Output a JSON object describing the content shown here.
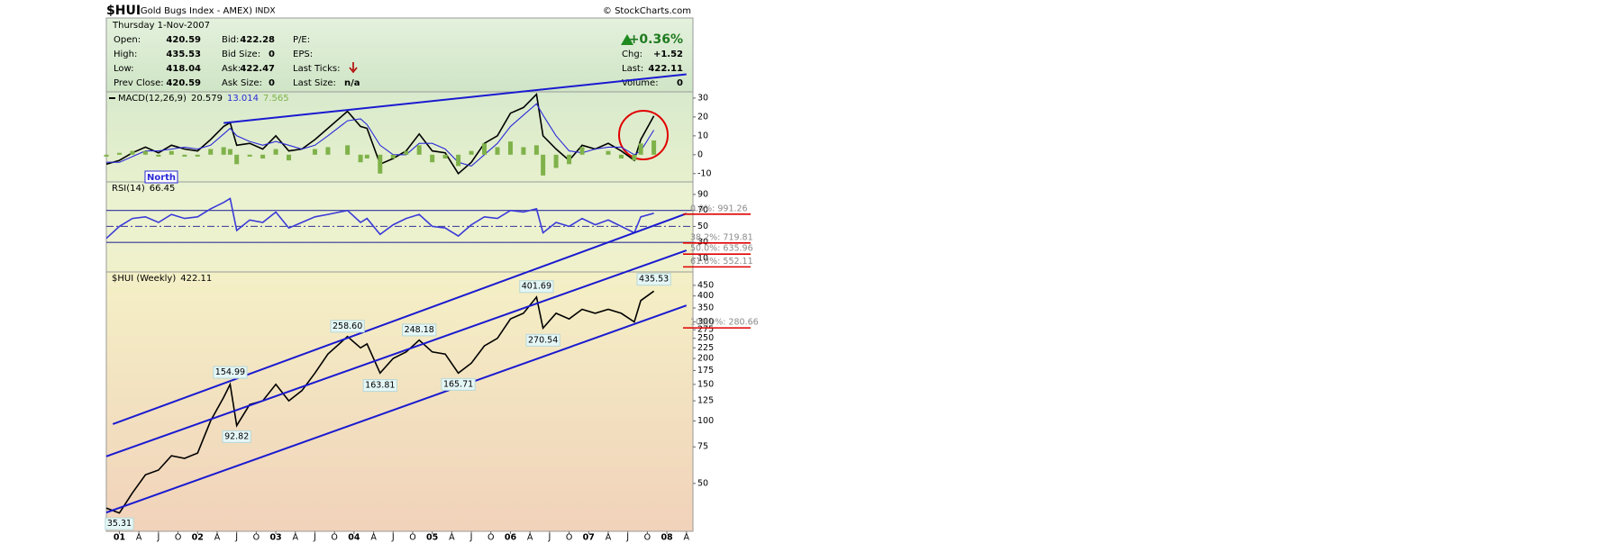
{
  "header": {
    "symbol": "$HUI",
    "name": "(Gold Bugs Index - AMEX)",
    "exchange": "INDX",
    "source": "© StockCharts.com",
    "date": "Thursday 1-Nov-2007",
    "quote": [
      {
        "label": "Open:",
        "value": "420.59"
      },
      {
        "label": "High:",
        "value": "435.53"
      },
      {
        "label": "Low:",
        "value": "418.04"
      },
      {
        "label": "Prev Close:",
        "value": "420.59"
      },
      {
        "label": "Bid:",
        "value": "422.28"
      },
      {
        "label": "Bid Size:",
        "value": "0"
      },
      {
        "label": "Ask:",
        "value": "422.47"
      },
      {
        "label": "Ask Size:",
        "value": "0"
      },
      {
        "label": "P/E:"
      },
      {
        "label": "EPS:"
      },
      {
        "label": "Last Ticks:"
      },
      {
        "label": "Last Size:",
        "value": "n/a"
      }
    ],
    "change_pct": "+0.36%",
    "summary": [
      {
        "label": "Chg:",
        "value": "+1.52"
      },
      {
        "label": "Last:",
        "value": "422.11"
      },
      {
        "label": "Volume:",
        "value": "0"
      }
    ]
  },
  "chart_data": [
    {
      "type": "line",
      "title": "MACD(12,26,9)",
      "note": "North",
      "x": [
        "2000-11",
        "2001-01",
        "2001-03",
        "2001-05",
        "2001-07",
        "2001-09",
        "2001-11",
        "2002-01",
        "2002-03",
        "2002-05",
        "2002-06",
        "2002-07",
        "2002-09",
        "2002-11",
        "2003-01",
        "2003-03",
        "2003-05",
        "2003-07",
        "2003-09",
        "2003-12",
        "2004-02",
        "2004-03",
        "2004-05",
        "2004-07",
        "2004-09",
        "2004-11",
        "2005-01",
        "2005-03",
        "2005-05",
        "2005-07",
        "2005-09",
        "2005-11",
        "2006-01",
        "2006-03",
        "2006-05",
        "2006-06",
        "2006-08",
        "2006-10",
        "2006-12",
        "2007-02",
        "2007-04",
        "2007-06",
        "2007-08",
        "2007-09",
        "2007-11"
      ],
      "series": [
        {
          "color": "#000000",
          "values": [
            -5,
            -3,
            1,
            4,
            1,
            5,
            3,
            2,
            8,
            15,
            17,
            5,
            6,
            3,
            10,
            2,
            3,
            8,
            14,
            23,
            15,
            14,
            -5,
            -2,
            2,
            11,
            2,
            1,
            -10,
            -4,
            6,
            10,
            22,
            25,
            32,
            10,
            3,
            -3,
            5,
            3,
            6,
            2,
            -3,
            8,
            20.579
          ]
        },
        {
          "color": "#2a2ad8",
          "values": [
            -4,
            -4,
            -1,
            2,
            2,
            3,
            4,
            3,
            5,
            11,
            14,
            10,
            7,
            5,
            7,
            5,
            3,
            5,
            10,
            18,
            19,
            16,
            5,
            0,
            0,
            6,
            6,
            3,
            -4,
            -6,
            0,
            6,
            15,
            21,
            27,
            21,
            10,
            2,
            1,
            3,
            4,
            4,
            0,
            2,
            13.014
          ]
        },
        {
          "type": "bar",
          "color": "#7fb24a",
          "values": [
            -1,
            1,
            2,
            2,
            -1,
            2,
            -1,
            -1,
            3,
            4,
            3,
            -5,
            -1,
            -2,
            3,
            -3,
            0,
            3,
            4,
            5,
            -4,
            -2,
            -10,
            -2,
            2,
            5,
            -4,
            -2,
            -6,
            2,
            6,
            4,
            7,
            4,
            5,
            -11,
            -7,
            -5,
            4,
            0,
            2,
            -2,
            -3,
            6,
            7.565
          ]
        }
      ],
      "trendlines": [
        {
          "x": [
            "2002-05",
            "2008-04"
          ],
          "values": [
            16.8,
            42.6
          ]
        }
      ],
      "trend_color": "#1a1ad0",
      "ylim": [
        -14.4,
        33.3
      ],
      "yticks": [
        30,
        20,
        10,
        0,
        -10
      ]
    },
    {
      "type": "line",
      "title": "RSI(14)",
      "x": [
        "2000-11",
        "2001-01",
        "2001-03",
        "2001-05",
        "2001-07",
        "2001-09",
        "2001-11",
        "2002-01",
        "2002-03",
        "2002-05",
        "2002-06",
        "2002-07",
        "2002-09",
        "2002-11",
        "2003-01",
        "2003-03",
        "2003-05",
        "2003-07",
        "2003-09",
        "2003-12",
        "2004-02",
        "2004-03",
        "2004-05",
        "2004-07",
        "2004-09",
        "2004-11",
        "2005-01",
        "2005-03",
        "2005-05",
        "2005-07",
        "2005-09",
        "2005-11",
        "2006-01",
        "2006-03",
        "2006-05",
        "2006-06",
        "2006-08",
        "2006-10",
        "2006-12",
        "2007-02",
        "2007-04",
        "2007-06",
        "2007-08",
        "2007-09",
        "2007-11"
      ],
      "series": [
        {
          "color": "#3a3ad8",
          "values": [
            35,
            50,
            60,
            62,
            55,
            65,
            60,
            62,
            72,
            80,
            85,
            45,
            58,
            55,
            68,
            48,
            55,
            62,
            65,
            70,
            55,
            60,
            40,
            52,
            60,
            65,
            50,
            48,
            38,
            52,
            62,
            60,
            70,
            68,
            72,
            42,
            55,
            50,
            60,
            52,
            58,
            50,
            42,
            62,
            66.45
          ]
        }
      ],
      "bands": [
        70,
        30
      ],
      "midline": 50,
      "band_color": "#33339a",
      "ylim": [
        -7,
        105.7
      ],
      "yticks": [
        90,
        70,
        50,
        30,
        10
      ]
    },
    {
      "type": "line",
      "title": "$HUI (Weekly)",
      "log_scale": true,
      "x": [
        "2000-11",
        "2001-01",
        "2001-03",
        "2001-05",
        "2001-07",
        "2001-09",
        "2001-11",
        "2002-01",
        "2002-03",
        "2002-05",
        "2002-06",
        "2002-07",
        "2002-09",
        "2002-11",
        "2003-01",
        "2003-03",
        "2003-05",
        "2003-07",
        "2003-09",
        "2003-12",
        "2004-02",
        "2004-03",
        "2004-05",
        "2004-07",
        "2004-09",
        "2004-11",
        "2005-01",
        "2005-03",
        "2005-05",
        "2005-07",
        "2005-09",
        "2005-11",
        "2006-01",
        "2006-03",
        "2006-05",
        "2006-06",
        "2006-08",
        "2006-10",
        "2006-12",
        "2007-02",
        "2007-04",
        "2007-06",
        "2007-08",
        "2007-09",
        "2007-11"
      ],
      "series": [
        {
          "color": "#000000",
          "values": [
            38,
            36,
            45,
            55,
            58,
            68,
            66,
            70,
            100,
            130,
            150,
            95,
            120,
            125,
            150,
            125,
            140,
            170,
            210,
            255,
            225,
            235,
            170,
            200,
            215,
            245,
            215,
            210,
            170,
            190,
            230,
            250,
            310,
            330,
            395,
            280,
            330,
            310,
            345,
            330,
            345,
            330,
            300,
            380,
            422.11
          ]
        }
      ],
      "annotations": [
        {
          "x": "2001-01",
          "value": 35.31
        },
        {
          "x": "2002-06",
          "value": 154.99
        },
        {
          "x": "2002-07",
          "value": 92.82
        },
        {
          "x": "2003-12",
          "value": 258.6,
          "label": "258.60"
        },
        {
          "x": "2004-05",
          "value": 163.81
        },
        {
          "x": "2004-11",
          "value": 248.18
        },
        {
          "x": "2005-05",
          "value": 165.71
        },
        {
          "x": "2006-05",
          "value": 401.69
        },
        {
          "x": "2006-06",
          "value": 270.54
        },
        {
          "x": "2007-11",
          "value": 435.53
        }
      ],
      "trendlines": [
        {
          "x": [
            "2000-12",
            "2008-04"
          ],
          "values": [
            96.6,
            997
          ]
        },
        {
          "x": [
            "2000-11",
            "2008-04"
          ],
          "values": [
            67.5,
            663
          ]
        },
        {
          "x": [
            "2000-11",
            "2008-04"
          ],
          "values": [
            36.2,
            360
          ]
        }
      ],
      "trend_color": "#1a1ad0",
      "levels": [
        {
          "label": "0.0%: 991.26",
          "value": 991.26
        },
        {
          "label": "38.2%: 719.81",
          "value": 719.81
        },
        {
          "label": "50.0%: 635.96",
          "value": 635.96
        },
        {
          "label": "61.8%: 552.11",
          "value": 552.11
        },
        {
          "label": "100.0%: 280.66",
          "value": 280.66
        }
      ],
      "level_color": "#e00000",
      "ylim": [
        29.4,
        522
      ],
      "yticks": [
        450,
        400,
        350,
        300,
        275,
        250,
        225,
        200,
        175,
        150,
        125,
        100,
        75,
        50
      ],
      "xlim": [
        "2000-11",
        "2008-05"
      ],
      "xticks": [
        {
          "value": "2001-01",
          "label": "01"
        },
        {
          "value": "2001-04",
          "label": "A"
        },
        {
          "value": "2001-07",
          "label": "J"
        },
        {
          "value": "2001-10",
          "label": "O"
        },
        {
          "value": "2002-01",
          "label": "02"
        },
        {
          "value": "2002-04",
          "label": "A"
        },
        {
          "value": "2002-07",
          "label": "J"
        },
        {
          "value": "2002-10",
          "label": "O"
        },
        {
          "value": "2003-01",
          "label": "03"
        },
        {
          "value": "2003-04",
          "label": "A"
        },
        {
          "value": "2003-07",
          "label": "J"
        },
        {
          "value": "2003-10",
          "label": "O"
        },
        {
          "value": "2004-01",
          "label": "04"
        },
        {
          "value": "2004-04",
          "label": "A"
        },
        {
          "value": "2004-07",
          "label": "J"
        },
        {
          "value": "2004-10",
          "label": "O"
        },
        {
          "value": "2005-01",
          "label": "05"
        },
        {
          "value": "2005-04",
          "label": "A"
        },
        {
          "value": "2005-07",
          "label": "J"
        },
        {
          "value": "2005-10",
          "label": "O"
        },
        {
          "value": "2006-01",
          "label": "06"
        },
        {
          "value": "2006-04",
          "label": "A"
        },
        {
          "value": "2006-07",
          "label": "J"
        },
        {
          "value": "2006-10",
          "label": "O"
        },
        {
          "value": "2007-01",
          "label": "07"
        },
        {
          "value": "2007-04",
          "label": "A"
        },
        {
          "value": "2007-07",
          "label": "J"
        },
        {
          "value": "2007-10",
          "label": "O"
        },
        {
          "value": "2008-01",
          "label": "08"
        },
        {
          "value": "2008-04",
          "label": "A"
        }
      ]
    }
  ]
}
